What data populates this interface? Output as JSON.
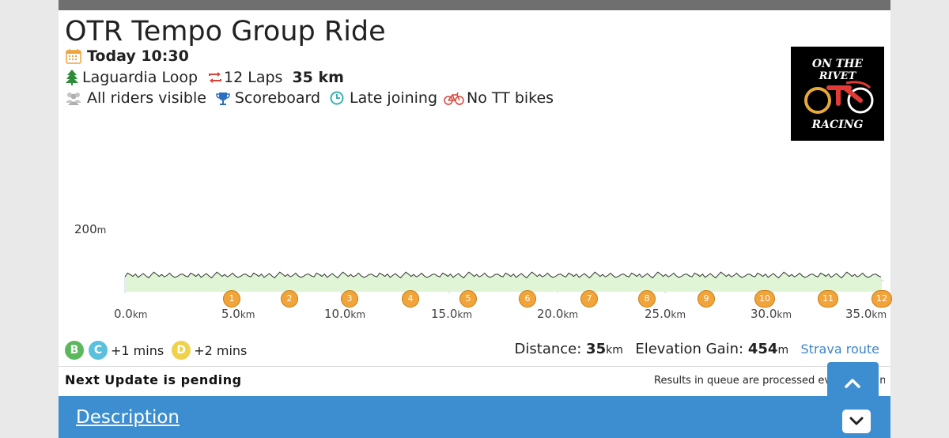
{
  "event": {
    "title": "OTR Tempo Group Ride",
    "date_time": "Today 10:30",
    "route": "Laguardia Loop",
    "laps": "12 Laps",
    "distance": "35 km",
    "visibility": "All riders visible",
    "scoreboard": "Scoreboard",
    "late_join": "Late joining",
    "tt_bikes": "No TT bikes"
  },
  "logo": {
    "line1": "ON THE",
    "line2": "RIVET",
    "line3": "RACING"
  },
  "profile": {
    "y_label": "200",
    "y_unit": "m",
    "x_labels": [
      {
        "value": "0.0",
        "unit": "km"
      },
      {
        "value": "5.0",
        "unit": "km"
      },
      {
        "value": "10.0",
        "unit": "km"
      },
      {
        "value": "15.0",
        "unit": "km"
      },
      {
        "value": "20.0",
        "unit": "km"
      },
      {
        "value": "25.0",
        "unit": "km"
      },
      {
        "value": "30.0",
        "unit": "km"
      },
      {
        "value": "35.0",
        "unit": "km"
      }
    ],
    "laps": [
      "1",
      "2",
      "3",
      "4",
      "5",
      "6",
      "7",
      "8",
      "9",
      "10",
      "11",
      "12"
    ]
  },
  "categories": [
    {
      "letter": "B",
      "color": "#5cb85c",
      "offset": ""
    },
    {
      "letter": "C",
      "color": "#5bc0de",
      "offset": "+1 mins"
    },
    {
      "letter": "D",
      "color": "#f0d24a",
      "offset": "+2 mins"
    }
  ],
  "stats": {
    "distance_label": "Distance:",
    "distance_value": "35",
    "distance_unit": "km",
    "elevation_label": "Elevation Gain:",
    "elevation_value": "454",
    "elevation_unit": "m",
    "strava_link": "Strava route"
  },
  "status": {
    "next_update": "Next Update is pending",
    "queue_text": "Results in queue are processed every 10 mins."
  },
  "description": {
    "label": "Description"
  },
  "colors": {
    "accent": "#3d8ed0",
    "profile_fill": "#dff5d6",
    "lap_marker": "#f0a43a"
  },
  "icons": {
    "calendar": "calendar-icon",
    "route": "tree-icon",
    "laps": "loop-icon",
    "visibility": "users-icon",
    "scoreboard": "trophy-icon",
    "late_join": "clock-icon",
    "tt_bikes": "bike-icon",
    "scroll_up": "chevron-up-icon",
    "scroll_down": "chevron-down-icon"
  }
}
